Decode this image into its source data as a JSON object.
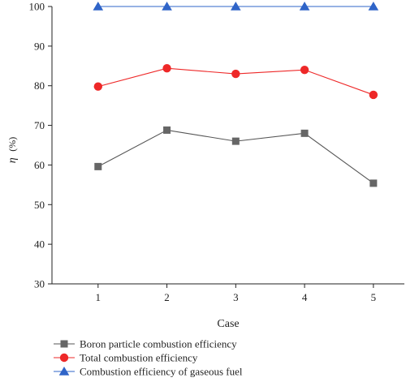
{
  "chart_data": {
    "type": "line",
    "x": [
      1,
      2,
      3,
      4,
      5
    ],
    "xlabel": "Case",
    "ylabel_symbol": "η",
    "ylabel_unit": "(%)",
    "ylim": [
      30,
      100
    ],
    "yticks": [
      30,
      40,
      50,
      60,
      70,
      80,
      90,
      100
    ],
    "xlim": [
      0.33,
      5.45
    ],
    "xticks": [
      1,
      2,
      3,
      4,
      5
    ],
    "grid": false,
    "legend_position": "bottom-left, below plot",
    "series": [
      {
        "name": "Boron particle combustion efficiency",
        "values": [
          59.6,
          68.8,
          66.0,
          68.0,
          55.4
        ],
        "color": "#666666",
        "line_color": "#555555",
        "marker": "square"
      },
      {
        "name": "Total combustion efficiency",
        "values": [
          79.8,
          84.4,
          83.0,
          84.0,
          77.7
        ],
        "color": "#ee2828",
        "line_color": "#ee2828",
        "marker": "circle"
      },
      {
        "name": "Combustion efficiency of gaseous fuel",
        "values": [
          100,
          100,
          100,
          100,
          100
        ],
        "color": "#2f64c8",
        "line_color": "#2f64c8",
        "marker": "triangle"
      }
    ]
  }
}
